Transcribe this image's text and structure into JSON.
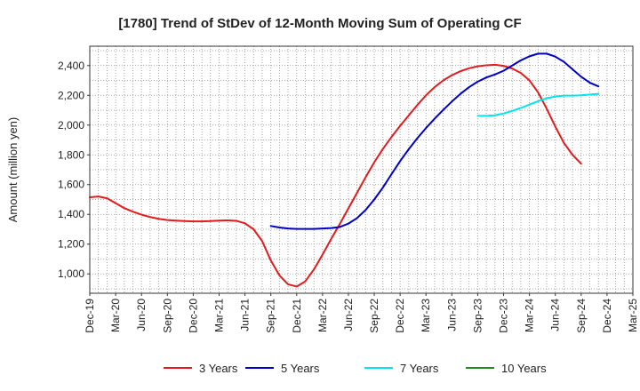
{
  "chart_data": {
    "type": "line",
    "title": "[1780]  Trend of StDev of 12-Month Moving Sum of Operating CF",
    "xlabel": "",
    "ylabel": "Amount (million yen)",
    "ylim": [
      870,
      2530
    ],
    "yticks": [
      1000,
      1200,
      1400,
      1600,
      1800,
      2000,
      2200,
      2400
    ],
    "ytick_labels": [
      "1,000",
      "1,200",
      "1,400",
      "1,600",
      "1,800",
      "2,000",
      "2,200",
      "2,400"
    ],
    "x_categories": [
      "Dec-19",
      "Mar-20",
      "Jun-20",
      "Sep-20",
      "Dec-20",
      "Mar-21",
      "Jun-21",
      "Sep-21",
      "Dec-21",
      "Mar-22",
      "Jun-22",
      "Sep-22",
      "Dec-22",
      "Mar-23",
      "Jun-23",
      "Sep-23",
      "Dec-23",
      "Mar-24",
      "Jun-24",
      "Sep-24",
      "Dec-24",
      "Mar-25"
    ],
    "grid": true,
    "legend_position": "bottom",
    "series": [
      {
        "name": "3 Years",
        "color": "#e41a1c",
        "start_index": 0,
        "values": [
          1515,
          1520,
          1508,
          1475,
          1442,
          1418,
          1398,
          1382,
          1370,
          1362,
          1358,
          1355,
          1353,
          1353,
          1355,
          1358,
          1360,
          1357,
          1340,
          1300,
          1220,
          1090,
          990,
          930,
          915,
          950,
          1030,
          1130,
          1235,
          1335,
          1440,
          1545,
          1650,
          1750,
          1840,
          1920,
          1995,
          2065,
          2135,
          2200,
          2255,
          2300,
          2335,
          2362,
          2382,
          2395,
          2402,
          2405,
          2398,
          2380,
          2350,
          2300,
          2220,
          2110,
          1990,
          1880,
          1800,
          1740
        ]
      },
      {
        "name": "5 Years",
        "color": "#0000cc",
        "start_index": 21,
        "values": [
          1322,
          1312,
          1305,
          1302,
          1302,
          1302,
          1305,
          1308,
          1315,
          1338,
          1375,
          1430,
          1500,
          1580,
          1670,
          1758,
          1838,
          1912,
          1980,
          2043,
          2102,
          2158,
          2210,
          2255,
          2292,
          2320,
          2340,
          2365,
          2400,
          2435,
          2462,
          2480,
          2480,
          2460,
          2425,
          2375,
          2325,
          2285,
          2260
        ]
      },
      {
        "name": "7 Years",
        "color": "#00e5ee",
        "start_index": 45,
        "values": [
          2062,
          2062,
          2066,
          2078,
          2095,
          2115,
          2138,
          2160,
          2180,
          2192,
          2198,
          2198,
          2200,
          2205,
          2210
        ]
      },
      {
        "name": "10 Years",
        "color": "#228b22",
        "start_index": 0,
        "values": []
      }
    ]
  }
}
